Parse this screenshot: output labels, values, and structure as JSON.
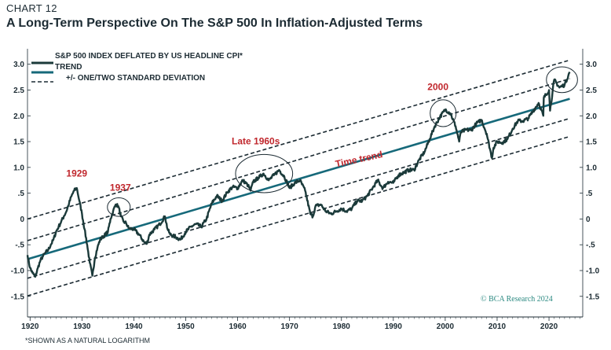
{
  "header": {
    "chart_number": "CHART 12",
    "title": "A Long-Term Perspective On The S&P 500 In Inflation-Adjusted Terms"
  },
  "footnote": "*SHOWN AS A NATURAL LOGARITHM",
  "credit": "© BCA Research 2024",
  "colors": {
    "index_line": "#1b3a3a",
    "trend_line": "#16697a",
    "band_line": "#1c2b33",
    "annotation": "#c0272d",
    "credit": "#2d8a82"
  },
  "chart_data": {
    "type": "line",
    "xlim": [
      1919.5,
      2026.5
    ],
    "ylim": [
      -1.9,
      3.3
    ],
    "x_ticks": [
      1920,
      1930,
      1940,
      1950,
      1960,
      1970,
      1980,
      1990,
      2000,
      2010,
      2020
    ],
    "y_ticks": [
      {
        "v": 3.0,
        "label": "3.0"
      },
      {
        "v": 2.5,
        "label": "2.5"
      },
      {
        "v": 2.0,
        "label": "2.0"
      },
      {
        "v": 1.5,
        "label": "1.5"
      },
      {
        "v": 1.0,
        "label": "1.0"
      },
      {
        "v": 0.5,
        "label": ".5"
      },
      {
        "v": 0.0,
        "label": "0"
      },
      {
        "v": -0.5,
        "label": "-.5"
      },
      {
        "v": -1.0,
        "label": "-1.0"
      },
      {
        "v": -1.5,
        "label": "-1.5"
      }
    ],
    "legend": {
      "placement": "top-left",
      "entries": [
        {
          "label": "S&P 500 INDEX DEFLATED BY US HEADLINE CPI*",
          "style": "index"
        },
        {
          "label": "TREND",
          "style": "trend"
        },
        {
          "label": "+/- ONE/TWO STANDARD DEVIATION",
          "style": "band"
        }
      ]
    },
    "trend": {
      "x": [
        1919.5,
        2024
      ],
      "y": [
        -0.78,
        2.33
      ]
    },
    "bands": [
      {
        "x": [
          1919.5,
          2024
        ],
        "y": [
          0.0,
          3.08
        ]
      },
      {
        "x": [
          1919.5,
          2024
        ],
        "y": [
          -0.42,
          2.72
        ]
      },
      {
        "x": [
          1919.5,
          2024
        ],
        "y": [
          -1.15,
          1.95
        ]
      },
      {
        "x": [
          1919.5,
          2024
        ],
        "y": [
          -1.49,
          1.6
        ]
      }
    ],
    "series": [
      {
        "x": [
          1919.5,
          1920,
          1920.5,
          1921,
          1921.5,
          1922,
          1922.5,
          1923,
          1923.5,
          1924,
          1924.5,
          1925,
          1925.5,
          1926,
          1926.5,
          1927,
          1927.5,
          1928,
          1928.5,
          1929,
          1929.5,
          1930,
          1930.5,
          1931,
          1931.5,
          1932,
          1932.5,
          1933,
          1933.5,
          1934,
          1935,
          1935.5,
          1936,
          1936.5,
          1937,
          1937.5,
          1938,
          1938.5,
          1939,
          1940,
          1941,
          1942,
          1942.5,
          1943,
          1944,
          1945,
          1946,
          1946.5,
          1947,
          1948,
          1949,
          1950,
          1951,
          1952,
          1953,
          1954,
          1955,
          1956,
          1957,
          1958,
          1959,
          1960,
          1961,
          1962,
          1962.5,
          1963,
          1964,
          1965,
          1966,
          1967,
          1968,
          1969,
          1970,
          1971,
          1972,
          1973,
          1974,
          1974.5,
          1975,
          1976,
          1977,
          1978,
          1979,
          1980,
          1981,
          1982,
          1983,
          1984,
          1985,
          1986,
          1987,
          1987.8,
          1988,
          1989,
          1990,
          1991,
          1992,
          1993,
          1994,
          1995,
          1996,
          1997,
          1998,
          1999,
          2000,
          2001,
          2002,
          2002.7,
          2003,
          2004,
          2005,
          2006,
          2007,
          2008,
          2009,
          2009.3,
          2010,
          2011,
          2012,
          2013,
          2014,
          2015,
          2016,
          2017,
          2018,
          2018.9,
          2019,
          2020,
          2020.2,
          2021,
          2022,
          2023,
          2024
        ],
        "y": [
          -0.7,
          -0.95,
          -1.05,
          -1.12,
          -0.95,
          -0.8,
          -0.72,
          -0.65,
          -0.6,
          -0.5,
          -0.4,
          -0.25,
          -0.15,
          -0.05,
          0.05,
          0.15,
          0.3,
          0.45,
          0.55,
          0.6,
          0.35,
          0.1,
          -0.2,
          -0.5,
          -0.85,
          -1.1,
          -0.75,
          -0.55,
          -0.4,
          -0.35,
          -0.25,
          0.0,
          0.15,
          0.28,
          0.25,
          0.05,
          -0.05,
          -0.08,
          -0.18,
          -0.2,
          -0.3,
          -0.45,
          -0.48,
          -0.3,
          -0.2,
          -0.1,
          0.05,
          -0.2,
          -0.3,
          -0.35,
          -0.4,
          -0.25,
          -0.15,
          -0.1,
          -0.15,
          0.0,
          0.3,
          0.45,
          0.35,
          0.52,
          0.62,
          0.6,
          0.75,
          0.65,
          0.55,
          0.72,
          0.8,
          0.88,
          0.75,
          0.85,
          0.95,
          0.82,
          0.6,
          0.7,
          0.75,
          0.55,
          0.1,
          0.05,
          0.25,
          0.28,
          0.15,
          0.1,
          0.15,
          0.2,
          0.15,
          0.2,
          0.35,
          0.35,
          0.45,
          0.6,
          0.75,
          0.62,
          0.6,
          0.72,
          0.7,
          0.85,
          0.9,
          0.95,
          0.95,
          1.15,
          1.3,
          1.55,
          1.8,
          1.98,
          2.12,
          2.05,
          1.8,
          1.5,
          1.68,
          1.73,
          1.72,
          1.85,
          1.92,
          1.65,
          1.18,
          1.38,
          1.5,
          1.48,
          1.55,
          1.75,
          1.9,
          1.9,
          1.95,
          2.1,
          2.25,
          2.0,
          2.35,
          2.5,
          2.1,
          2.7,
          2.55,
          2.6,
          2.85
        ]
      }
    ],
    "annotations": [
      {
        "text": "1929",
        "x": 1929,
        "y": 0.82
      },
      {
        "text": "1937",
        "x": 1937.4,
        "y": 0.55
      },
      {
        "text": "Late 1960s",
        "x": 1963.5,
        "y": 1.45
      },
      {
        "text": "2000",
        "x": 1998.6,
        "y": 2.5
      }
    ],
    "trend_label": {
      "text": "Time trend",
      "x": 1983.5,
      "y": 1.1
    },
    "circles": [
      {
        "cx": 1937.1,
        "cy": 0.23,
        "rx": 2.2,
        "ry": 0.18
      },
      {
        "cx": 1965.1,
        "cy": 0.88,
        "rx": 5.5,
        "ry": 0.37
      },
      {
        "cx": 1999.6,
        "cy": 2.05,
        "rx": 2.5,
        "ry": 0.26
      },
      {
        "cx": 2022.5,
        "cy": 2.7,
        "rx": 3.0,
        "ry": 0.25
      }
    ]
  }
}
